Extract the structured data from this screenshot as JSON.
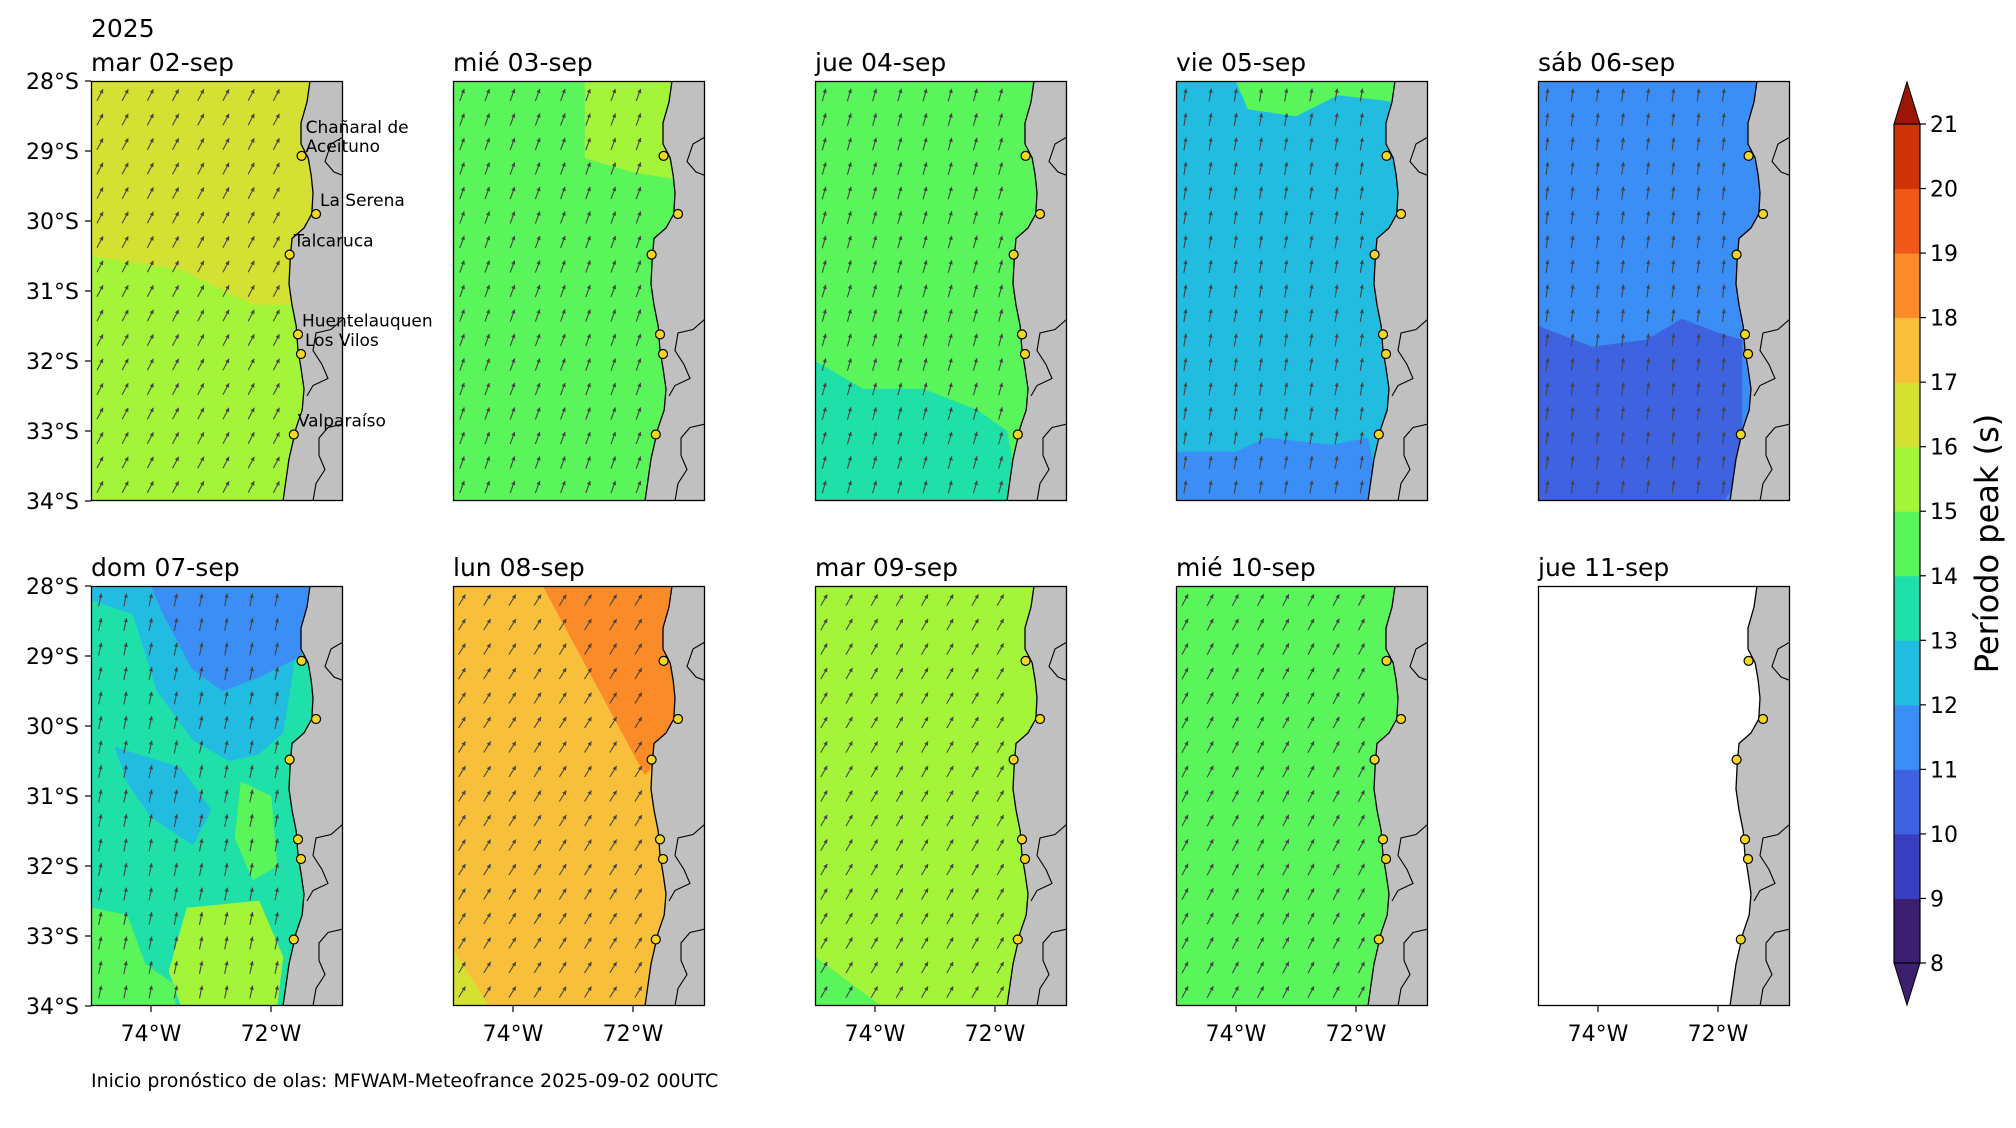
{
  "figure": {
    "year_label": "2025",
    "footer": "Inicio pronóstico de olas: MFWAM-Meteofrance 2025-09-02 00UTC"
  },
  "chart_data": {
    "type": "heatmap",
    "description_axes": {
      "lon_range": [
        -75,
        -70.8
      ],
      "lat_range": [
        -34,
        -28
      ],
      "lat_ticks": [
        "28°S",
        "29°S",
        "30°S",
        "31°S",
        "32°S",
        "33°S",
        "34°S"
      ],
      "lon_ticks": [
        "74°W",
        "72°W"
      ]
    },
    "colorbar": {
      "label": "Período peak (s)",
      "levels": [
        8,
        9,
        10,
        11,
        12,
        13,
        14,
        15,
        16,
        17,
        18,
        19,
        20,
        21
      ],
      "colors": [
        "#3c1f6e",
        "#3a3fc2",
        "#3f62e0",
        "#3b8ef5",
        "#22bce0",
        "#1fe0a8",
        "#5af55a",
        "#a4f53a",
        "#d4e132",
        "#f7bf3a",
        "#fb8a28",
        "#f0581a",
        "#cf3308",
        "#9b1605"
      ],
      "extend": "both"
    },
    "locations": [
      {
        "name": "Chañaral de\nAceituno",
        "label_lines": [
          "Chañaral de",
          "Aceituno"
        ],
        "lat": -29.07,
        "lon": -71.49
      },
      {
        "name": "La Serena",
        "label_lines": [
          "La Serena"
        ],
        "lat": -29.9,
        "lon": -71.25
      },
      {
        "name": "Talcaruca",
        "label_lines": [
          "Talcaruca"
        ],
        "lat": -30.48,
        "lon": -71.69
      },
      {
        "name": "Huentelauquen",
        "label_lines": [
          "Huentelauquen"
        ],
        "lat": -31.62,
        "lon": -71.55
      },
      {
        "name": "Los Vilos",
        "label_lines": [
          "Los Vilos"
        ],
        "lat": -31.9,
        "lon": -71.5
      },
      {
        "name": "Valparaíso",
        "label_lines": [
          "Valparaíso"
        ],
        "lat": -33.05,
        "lon": -71.62
      }
    ],
    "panels": [
      {
        "title": "mar 02-sep",
        "arrow_angle_deg": 62,
        "regions": [
          {
            "value": 16.5,
            "poly": [
              [
                -75,
                -28
              ],
              [
                -71.3,
                -28
              ],
              [
                -71.3,
                -31.2
              ],
              [
                -72.3,
                -31.2
              ],
              [
                -73.5,
                -30.7
              ],
              [
                -75,
                -30.5
              ]
            ]
          },
          {
            "value": 15.5,
            "poly": [
              [
                -75,
                -30.5
              ],
              [
                -73.5,
                -30.7
              ],
              [
                -72.3,
                -31.2
              ],
              [
                -71.3,
                -31.2
              ],
              [
                -71.3,
                -34
              ],
              [
                -75,
                -34
              ]
            ]
          }
        ]
      },
      {
        "title": "mié 03-sep",
        "arrow_angle_deg": 70,
        "regions": [
          {
            "value": 14.5,
            "poly": [
              [
                -75,
                -28
              ],
              [
                -70.8,
                -28
              ],
              [
                -70.8,
                -34
              ],
              [
                -75,
                -34
              ]
            ]
          },
          {
            "value": 15.5,
            "poly": [
              [
                -72.8,
                -28
              ],
              [
                -71.3,
                -28
              ],
              [
                -71.3,
                -29.4
              ],
              [
                -72.0,
                -29.3
              ],
              [
                -72.8,
                -29.1
              ]
            ]
          }
        ]
      },
      {
        "title": "jue 04-sep",
        "arrow_angle_deg": 74,
        "regions": [
          {
            "value": 14.5,
            "poly": [
              [
                -75,
                -28
              ],
              [
                -70.8,
                -28
              ],
              [
                -70.8,
                -34
              ],
              [
                -75,
                -34
              ]
            ]
          },
          {
            "value": 13.5,
            "poly": [
              [
                -75,
                -32.0
              ],
              [
                -74.2,
                -32.4
              ],
              [
                -73.2,
                -32.4
              ],
              [
                -72.3,
                -32.7
              ],
              [
                -71.8,
                -33.0
              ],
              [
                -71.6,
                -34
              ],
              [
                -75,
                -34
              ]
            ]
          }
        ]
      },
      {
        "title": "vie 05-sep",
        "arrow_angle_deg": 80,
        "regions": [
          {
            "value": 12.5,
            "poly": [
              [
                -75,
                -28
              ],
              [
                -70.8,
                -28
              ],
              [
                -70.8,
                -34
              ],
              [
                -75,
                -34
              ]
            ]
          },
          {
            "value": 14.5,
            "poly": [
              [
                -74.0,
                -28
              ],
              [
                -71.3,
                -28
              ],
              [
                -71.3,
                -28.3
              ],
              [
                -72.3,
                -28.2
              ],
              [
                -73.0,
                -28.5
              ],
              [
                -73.8,
                -28.4
              ]
            ]
          },
          {
            "value": 11.5,
            "poly": [
              [
                -75,
                -33.3
              ],
              [
                -74.0,
                -33.3
              ],
              [
                -73.5,
                -33.1
              ],
              [
                -72.4,
                -33.2
              ],
              [
                -71.8,
                -33.1
              ],
              [
                -71.6,
                -34
              ],
              [
                -75,
                -34
              ]
            ]
          }
        ]
      },
      {
        "title": "sáb 06-sep",
        "arrow_angle_deg": 82,
        "regions": [
          {
            "value": 11.5,
            "poly": [
              [
                -75,
                -28
              ],
              [
                -70.8,
                -28
              ],
              [
                -70.8,
                -34
              ],
              [
                -75,
                -34
              ]
            ]
          },
          {
            "value": 10.5,
            "poly": [
              [
                -75,
                -31.5
              ],
              [
                -74.1,
                -31.8
              ],
              [
                -73.2,
                -31.7
              ],
              [
                -72.6,
                -31.4
              ],
              [
                -72.0,
                -31.6
              ],
              [
                -71.6,
                -31.7
              ],
              [
                -71.6,
                -33.6
              ],
              [
                -71.9,
                -34
              ],
              [
                -75,
                -34
              ]
            ]
          }
        ]
      },
      {
        "title": "dom 07-sep",
        "arrow_angle_deg": 78,
        "regions": [
          {
            "value": 13.5,
            "poly": [
              [
                -75,
                -28
              ],
              [
                -70.8,
                -28
              ],
              [
                -70.8,
                -34
              ],
              [
                -75,
                -34
              ]
            ]
          },
          {
            "value": 12.5,
            "poly": [
              [
                -75,
                -28.2
              ],
              [
                -74.3,
                -28.4
              ],
              [
                -73.9,
                -29.5
              ],
              [
                -73.3,
                -30.2
              ],
              [
                -72.7,
                -30.5
              ],
              [
                -72.2,
                -30.4
              ],
              [
                -71.8,
                -30.1
              ],
              [
                -71.5,
                -28.5
              ],
              [
                -71.4,
                -28
              ],
              [
                -75,
                -28
              ]
            ]
          },
          {
            "value": 11.5,
            "poly": [
              [
                -74.0,
                -28
              ],
              [
                -71.3,
                -28
              ],
              [
                -71.5,
                -29.0
              ],
              [
                -72.2,
                -29.3
              ],
              [
                -72.8,
                -29.5
              ],
              [
                -73.3,
                -29.2
              ],
              [
                -73.8,
                -28.4
              ]
            ]
          },
          {
            "value": 12.5,
            "poly": [
              [
                -74.6,
                -30.3
              ],
              [
                -73.5,
                -30.6
              ],
              [
                -73.0,
                -31.2
              ],
              [
                -73.3,
                -31.7
              ],
              [
                -74.0,
                -31.3
              ],
              [
                -74.4,
                -30.8
              ]
            ]
          },
          {
            "value": 15.5,
            "poly": [
              [
                -73.4,
                -32.6
              ],
              [
                -72.2,
                -32.5
              ],
              [
                -71.8,
                -33.3
              ],
              [
                -71.9,
                -34
              ],
              [
                -73.5,
                -34
              ],
              [
                -73.7,
                -33.5
              ]
            ]
          },
          {
            "value": 14.5,
            "poly": [
              [
                -75,
                -32.6
              ],
              [
                -74.4,
                -32.7
              ],
              [
                -74.1,
                -33.4
              ],
              [
                -73.6,
                -33.7
              ],
              [
                -73.6,
                -34
              ],
              [
                -75,
                -34
              ]
            ]
          },
          {
            "value": 14.5,
            "poly": [
              [
                -72.5,
                -30.8
              ],
              [
                -72.0,
                -31.0
              ],
              [
                -71.9,
                -32.0
              ],
              [
                -72.3,
                -32.2
              ],
              [
                -72.6,
                -31.6
              ]
            ]
          }
        ]
      },
      {
        "title": "lun 08-sep",
        "arrow_angle_deg": 58,
        "regions": [
          {
            "value": 17.5,
            "poly": [
              [
                -75,
                -28
              ],
              [
                -70.8,
                -28
              ],
              [
                -70.8,
                -34
              ],
              [
                -75,
                -34
              ]
            ]
          },
          {
            "value": 18.5,
            "poly": [
              [
                -73.5,
                -28
              ],
              [
                -71.3,
                -28
              ],
              [
                -71.3,
                -30.2
              ],
              [
                -71.8,
                -30.7
              ]
            ]
          },
          {
            "value": 16.5,
            "poly": [
              [
                -75,
                -33.2
              ],
              [
                -74.4,
                -34
              ],
              [
                -75,
                -34
              ]
            ]
          }
        ]
      },
      {
        "title": "mar 09-sep",
        "arrow_angle_deg": 60,
        "regions": [
          {
            "value": 15.5,
            "poly": [
              [
                -75,
                -28
              ],
              [
                -70.8,
                -28
              ],
              [
                -70.8,
                -34
              ],
              [
                -75,
                -34
              ]
            ]
          },
          {
            "value": 14.5,
            "poly": [
              [
                -75,
                -33.3
              ],
              [
                -73.9,
                -34
              ],
              [
                -75,
                -34
              ]
            ]
          }
        ]
      },
      {
        "title": "mié 10-sep",
        "arrow_angle_deg": 62,
        "regions": [
          {
            "value": 14.5,
            "poly": [
              [
                -75,
                -28
              ],
              [
                -70.8,
                -28
              ],
              [
                -70.8,
                -34
              ],
              [
                -75,
                -34
              ]
            ]
          }
        ]
      },
      {
        "title": "jue 11-sep",
        "arrow_angle_deg": null,
        "regions": []
      }
    ]
  }
}
